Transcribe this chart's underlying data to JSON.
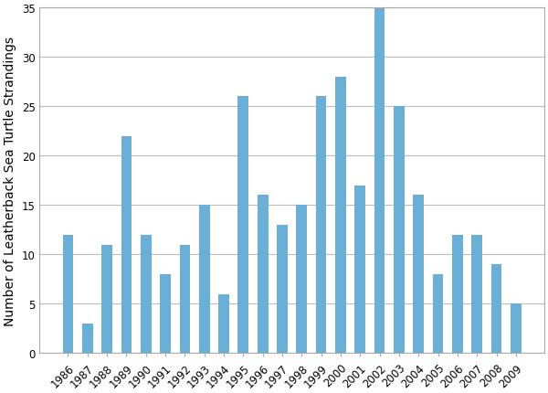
{
  "years": [
    "1986",
    "1987",
    "1988",
    "1989",
    "1990",
    "1991",
    "1992",
    "1993",
    "1994",
    "1995",
    "1996",
    "1997",
    "1998",
    "1999",
    "2000",
    "2001",
    "2002",
    "2003",
    "2004",
    "2005",
    "2006",
    "2007",
    "2008",
    "2009"
  ],
  "values": [
    12,
    3,
    11,
    22,
    12,
    8,
    11,
    15,
    6,
    26,
    16,
    13,
    15,
    26,
    28,
    17,
    35,
    25,
    16,
    8,
    12,
    12,
    9,
    5
  ],
  "bar_color": "#6baed6",
  "ylabel": "Number of Leatherback Sea Turtle Strandings",
  "ylim": [
    0,
    35
  ],
  "yticks": [
    0,
    5,
    10,
    15,
    20,
    25,
    30,
    35
  ],
  "grid_color": "#bbbbbb",
  "background_color": "#ffffff",
  "ylabel_fontsize": 10,
  "tick_fontsize": 8.5,
  "bar_width": 0.55
}
